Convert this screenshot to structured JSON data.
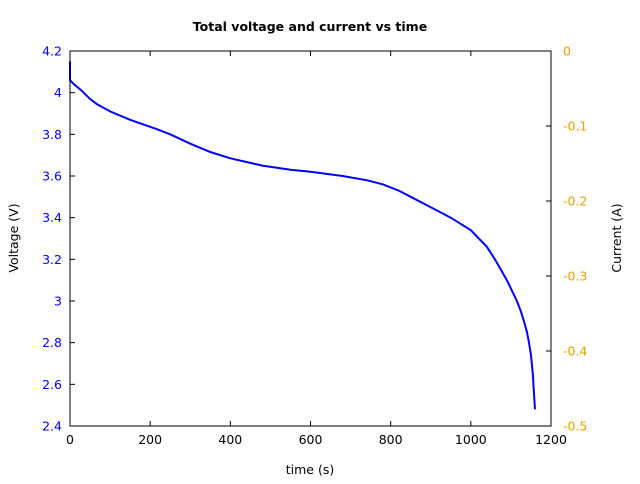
{
  "chart_data": {
    "type": "line",
    "title": "Total voltage and current vs time",
    "xlabel": "time (s)",
    "ylabel": "Voltage (V)",
    "y2label": "Current (A)",
    "xlim": [
      0,
      1200
    ],
    "ylim": [
      2.4,
      4.2
    ],
    "y2lim": [
      -0.5,
      0
    ],
    "xticks": [
      "0",
      "200",
      "400",
      "600",
      "800",
      "1000",
      "1200"
    ],
    "yticks": [
      "2.4",
      "2.6",
      "2.8",
      "3",
      "3.2",
      "3.4",
      "3.6",
      "3.8",
      "4",
      "4.2"
    ],
    "y2ticks": [
      "-0.5",
      "-0.4",
      "-0.3",
      "-0.2",
      "-0.1",
      "0"
    ],
    "grid": false,
    "colors": {
      "voltage": "#0000ff",
      "current_axis": "#e8a000",
      "axes": "#000000"
    },
    "series": [
      {
        "axis": "left",
        "x": [
          0,
          0,
          10,
          29,
          50,
          67,
          100,
          150,
          216,
          250,
          300,
          350,
          400,
          480,
          550,
          600,
          680,
          740,
          780,
          820,
          850,
          900,
          950,
          1000,
          1020,
          1040,
          1060,
          1075,
          1090,
          1105,
          1115,
          1125,
          1133,
          1140,
          1145,
          1150,
          1152,
          1155,
          1156,
          1158,
          1160
        ],
        "y": [
          4.15,
          4.06,
          4.04,
          4.01,
          3.97,
          3.945,
          3.91,
          3.87,
          3.825,
          3.8,
          3.755,
          3.715,
          3.685,
          3.65,
          3.63,
          3.62,
          3.6,
          3.58,
          3.56,
          3.53,
          3.5,
          3.45,
          3.4,
          3.34,
          3.3,
          3.26,
          3.2,
          3.15,
          3.1,
          3.04,
          3.0,
          2.95,
          2.9,
          2.85,
          2.8,
          2.74,
          2.7,
          2.64,
          2.6,
          2.54,
          2.48
        ]
      }
    ]
  }
}
